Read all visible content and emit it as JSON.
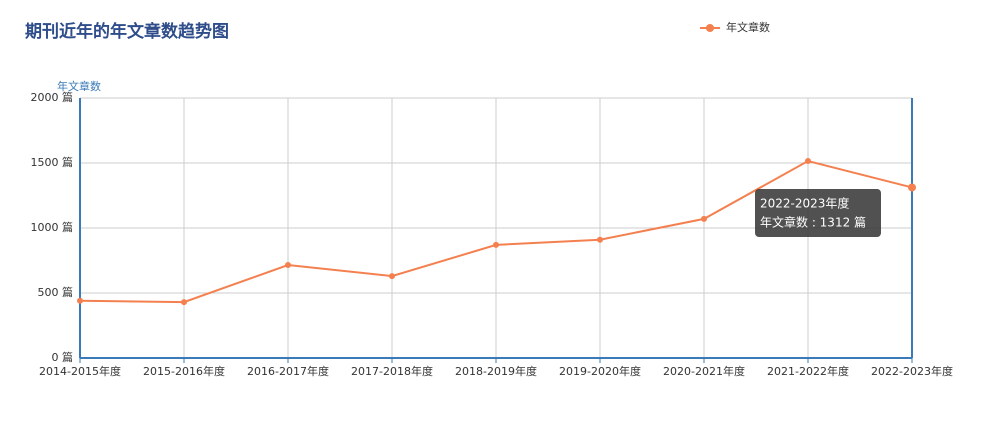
{
  "chart_data": {
    "type": "line",
    "title": "期刊近年的年文章数趋势图",
    "y_label": "年文章数",
    "categories": [
      "2014-2015年度",
      "2015-2016年度",
      "2016-2017年度",
      "2017-2018年度",
      "2018-2019年度",
      "2019-2020年度",
      "2020-2021年度",
      "2021-2022年度",
      "2022-2023年度"
    ],
    "series": [
      {
        "name": "年文章数",
        "color": "#f4804f",
        "values": [
          440,
          430,
          715,
          630,
          870,
          910,
          1070,
          1515,
          1312
        ],
        "value_labels": [
          null,
          null,
          null,
          null,
          null,
          null,
          null,
          null,
          "年文章数 : 1312 篇"
        ]
      }
    ],
    "ylim": [
      0,
      2000
    ],
    "yticks": [
      {
        "value": 0,
        "label": "0 篇"
      },
      {
        "value": 500,
        "label": "500 篇"
      },
      {
        "value": 1000,
        "label": "1000 篇"
      },
      {
        "value": 1500,
        "label": "1500 篇"
      },
      {
        "value": 2000,
        "label": "2000 篇"
      }
    ],
    "grid": true,
    "legend": "top"
  }
}
